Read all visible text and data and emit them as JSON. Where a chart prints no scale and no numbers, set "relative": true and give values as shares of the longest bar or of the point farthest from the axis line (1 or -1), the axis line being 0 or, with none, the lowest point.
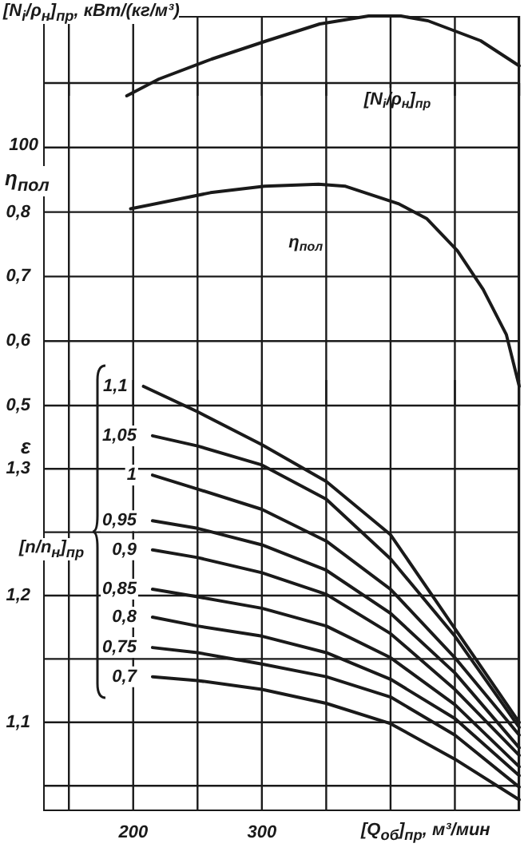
{
  "chart_data": [
    {
      "type": "line",
      "ylabel": "[N$_{i}$/ρ$_{н}$]$_{пр}$, кВт/(кг/м³)",
      "relative": true,
      "annotations": [
        "100"
      ],
      "xlim": [
        130,
        500
      ],
      "xticks": [
        {
          "value": 150,
          "label": null
        },
        {
          "value": 200,
          "label": null
        },
        {
          "value": 250,
          "label": null
        },
        {
          "value": 300,
          "label": null
        },
        {
          "value": 350,
          "label": null
        },
        {
          "value": 400,
          "label": null
        },
        {
          "value": 450,
          "label": null
        },
        {
          "value": 500,
          "label": null
        }
      ],
      "tick_labels": false,
      "grid": "x",
      "x": [
        195,
        220,
        261,
        304,
        345,
        383,
        408,
        429,
        470,
        500
      ],
      "series": [
        {
          "name": "[N$_{i}$/ρ$_{н}$]$_{пр}$",
          "color": "#1a1a1a",
          "values": [
            0,
            0.21,
            0.46,
            0.69,
            0.9,
            1,
            1,
            0.94,
            0.69,
            0.375
          ]
        }
      ]
    },
    {
      "type": "line",
      "ylabel": "η$_{пол}$",
      "xlim": [
        130,
        500
      ],
      "xticks": [
        {
          "value": 150,
          "label": null
        },
        {
          "value": 200,
          "label": null
        },
        {
          "value": 250,
          "label": null
        },
        {
          "value": 300,
          "label": null
        },
        {
          "value": 350,
          "label": null
        },
        {
          "value": 400,
          "label": null
        },
        {
          "value": 450,
          "label": null
        },
        {
          "value": 500,
          "label": null
        }
      ],
      "ylim": [
        0.5,
        1.0
      ],
      "yticks": [
        {
          "value": 0.5,
          "label": "0,5"
        },
        {
          "value": 0.6,
          "label": "0,6"
        },
        {
          "value": 0.7,
          "label": "0,7"
        },
        {
          "value": 0.8,
          "label": "0,8"
        },
        {
          "value": 0.9,
          "label": null
        },
        {
          "value": 1.0,
          "label": null
        }
      ],
      "tick_labels": "y",
      "grid": true,
      "x": [
        198,
        260,
        302,
        344,
        365,
        406,
        428,
        452,
        472,
        490,
        500
      ],
      "series": [
        {
          "name": "η$_{пол}$",
          "color": "#1a1a1a",
          "values": [
            0.805,
            0.83,
            0.84,
            0.843,
            0.84,
            0.813,
            0.79,
            0.74,
            0.68,
            0.61,
            0.53
          ]
        }
      ]
    },
    {
      "type": "line",
      "ylabel": "ε",
      "xlabel": "[Q$_{об}$]$_{пр}$, м³/мин",
      "legend_title": "[n/n$_{н}$]$_{пр}$",
      "xlim": [
        130,
        500
      ],
      "xticks": [
        {
          "value": 150,
          "label": null
        },
        200,
        {
          "value": 250,
          "label": null
        },
        300,
        {
          "value": 350,
          "label": null
        },
        {
          "value": 400,
          "label": null
        },
        {
          "value": 450,
          "label": null
        },
        {
          "value": 500,
          "label": null
        }
      ],
      "ylim": [
        1.03,
        1.37
      ],
      "yticks": [
        {
          "value": 1.05,
          "label": null
        },
        {
          "value": 1.1,
          "label": "1,1"
        },
        {
          "value": 1.15,
          "label": null
        },
        {
          "value": 1.2,
          "label": "1,2"
        },
        {
          "value": 1.25,
          "label": null
        },
        {
          "value": 1.3,
          "label": "1,3"
        }
      ],
      "grid": true,
      "x": [
        215,
        250,
        300,
        350,
        400,
        450,
        500
      ],
      "series": [
        {
          "name": "1,1",
          "color": "#1a1a1a",
          "x": [
            208,
            250,
            300,
            350,
            400,
            450,
            500
          ],
          "values": [
            1.365,
            1.345,
            1.319,
            1.29,
            1.248,
            1.174,
            1.1
          ]
        },
        {
          "name": "1,05",
          "color": "#1a1a1a",
          "values": [
            1.326,
            1.318,
            1.303,
            1.276,
            1.229,
            1.168,
            1.096
          ]
        },
        {
          "name": "1",
          "color": "#1a1a1a",
          "values": [
            1.295,
            1.284,
            1.268,
            1.243,
            1.205,
            1.151,
            1.09
          ]
        },
        {
          "name": "0,95",
          "color": "#1a1a1a",
          "values": [
            1.259,
            1.253,
            1.24,
            1.22,
            1.186,
            1.139,
            1.08
          ]
        },
        {
          "name": "0,9",
          "color": "#1a1a1a",
          "values": [
            1.236,
            1.23,
            1.218,
            1.201,
            1.17,
            1.126,
            1.074
          ]
        },
        {
          "name": "0,85",
          "color": "#1a1a1a",
          "values": [
            1.205,
            1.199,
            1.19,
            1.176,
            1.151,
            1.114,
            1.065
          ]
        },
        {
          "name": "0,8",
          "color": "#1a1a1a",
          "values": [
            1.183,
            1.176,
            1.168,
            1.155,
            1.134,
            1.103,
            1.058
          ]
        },
        {
          "name": "0,75",
          "color": "#1a1a1a",
          "values": [
            1.159,
            1.155,
            1.146,
            1.136,
            1.12,
            1.09,
            1.049
          ]
        },
        {
          "name": "0,7",
          "color": "#1a1a1a",
          "values": [
            1.136,
            1.133,
            1.126,
            1.115,
            1.099,
            1.071,
            1.039
          ]
        }
      ]
    }
  ]
}
